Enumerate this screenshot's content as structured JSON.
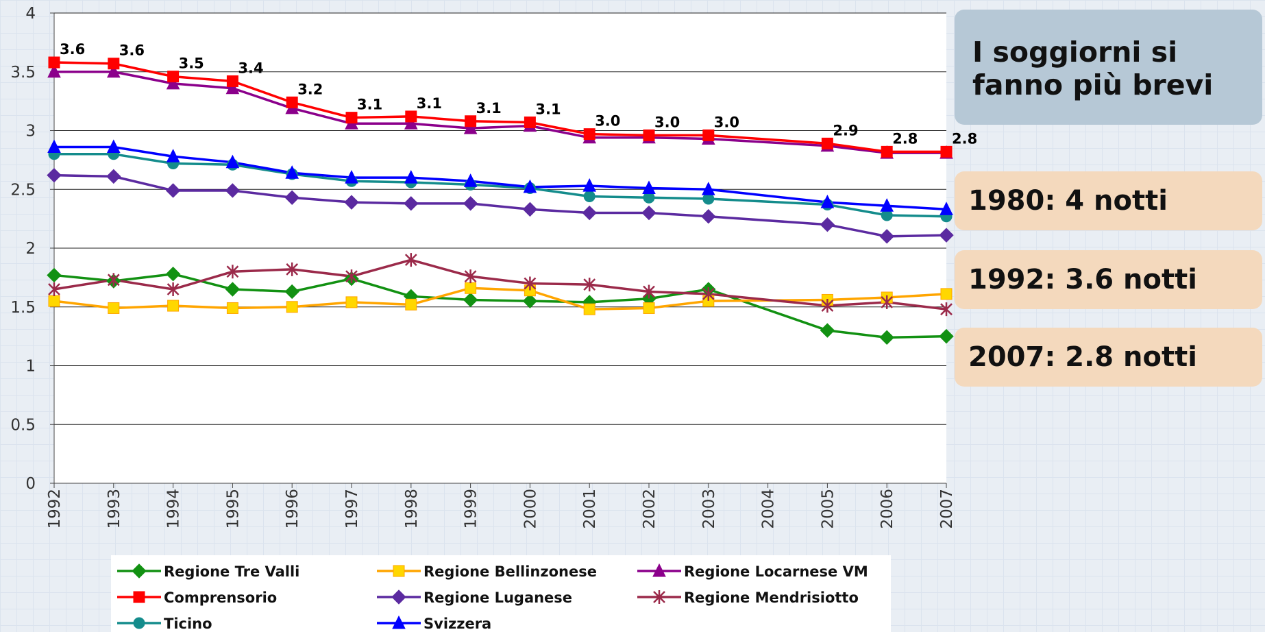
{
  "chart_data": {
    "type": "line",
    "x": [
      1992,
      1993,
      1994,
      1995,
      1996,
      1997,
      1998,
      1999,
      2000,
      2001,
      2002,
      2003,
      2005,
      2006,
      2007
    ],
    "xlim": [
      1992,
      2007
    ],
    "xticks": [
      1992,
      1993,
      1994,
      1995,
      1996,
      1997,
      1998,
      1999,
      2000,
      2001,
      2002,
      2003,
      2004,
      2005,
      2006,
      2007
    ],
    "ylim": [
      0,
      4
    ],
    "yticks": [
      0,
      0.5,
      1,
      1.5,
      2,
      2.5,
      3,
      3.5,
      4
    ],
    "grid": true,
    "legend": "bottom",
    "series": [
      {
        "name": "Regione Tre Valli",
        "color": "#129112",
        "marker": "diamond",
        "values": [
          1.77,
          1.72,
          1.78,
          1.65,
          1.63,
          1.74,
          1.59,
          1.56,
          1.55,
          1.54,
          1.57,
          1.65,
          1.3,
          1.24,
          1.25
        ]
      },
      {
        "name": "Regione Bellinzonese",
        "color": "#ffa500",
        "marker": "square",
        "values": [
          1.55,
          1.49,
          1.51,
          1.49,
          1.5,
          1.54,
          1.52,
          1.66,
          1.64,
          1.48,
          1.49,
          1.55,
          1.56,
          1.58,
          1.61
        ]
      },
      {
        "name": "Regione Locarnese VM",
        "color": "#8b008b",
        "marker": "triangle",
        "values": [
          3.5,
          3.5,
          3.4,
          3.36,
          3.19,
          3.06,
          3.06,
          3.02,
          3.04,
          2.94,
          2.94,
          2.93,
          2.87,
          2.81,
          2.81
        ]
      },
      {
        "name": "Comprensorio",
        "color": "#ff0000",
        "marker": "square",
        "values": [
          3.58,
          3.57,
          3.46,
          3.42,
          3.24,
          3.11,
          3.12,
          3.08,
          3.07,
          2.97,
          2.96,
          2.96,
          2.89,
          2.82,
          2.82
        ],
        "value_labels": [
          "3.6",
          "3.6",
          "3.5",
          "3.4",
          "3.2",
          "3.1",
          "3.1",
          "3.1",
          "3.1",
          "3.0",
          "3.0",
          "3.0",
          "2.9",
          "2.8",
          "2.8"
        ]
      },
      {
        "name": "Regione Luganese",
        "color": "#5b2aa0",
        "marker": "diamond",
        "values": [
          2.62,
          2.61,
          2.49,
          2.49,
          2.43,
          2.39,
          2.38,
          2.38,
          2.33,
          2.3,
          2.3,
          2.27,
          2.2,
          2.1,
          2.11
        ]
      },
      {
        "name": "Regione Mendrisiotto",
        "color": "#9b2a4a",
        "marker": "star",
        "values": [
          1.65,
          1.73,
          1.65,
          1.8,
          1.82,
          1.76,
          1.9,
          1.76,
          1.7,
          1.69,
          1.63,
          1.61,
          1.51,
          1.54,
          1.48
        ]
      },
      {
        "name": "Ticino",
        "color": "#148c8c",
        "marker": "circle",
        "values": [
          2.8,
          2.8,
          2.72,
          2.71,
          2.63,
          2.57,
          2.56,
          2.54,
          2.51,
          2.44,
          2.43,
          2.42,
          2.37,
          2.28,
          2.27
        ]
      },
      {
        "name": "Svizzera",
        "color": "#0000ff",
        "marker": "triangle",
        "values": [
          2.86,
          2.86,
          2.78,
          2.73,
          2.64,
          2.6,
          2.6,
          2.57,
          2.52,
          2.53,
          2.51,
          2.5,
          2.39,
          2.36,
          2.33
        ]
      }
    ]
  },
  "annotations": [
    "I soggiorni si fanno più brevi",
    "1980: 4 notti",
    "1992: 3.6 notti",
    "2007: 2.8 notti"
  ]
}
